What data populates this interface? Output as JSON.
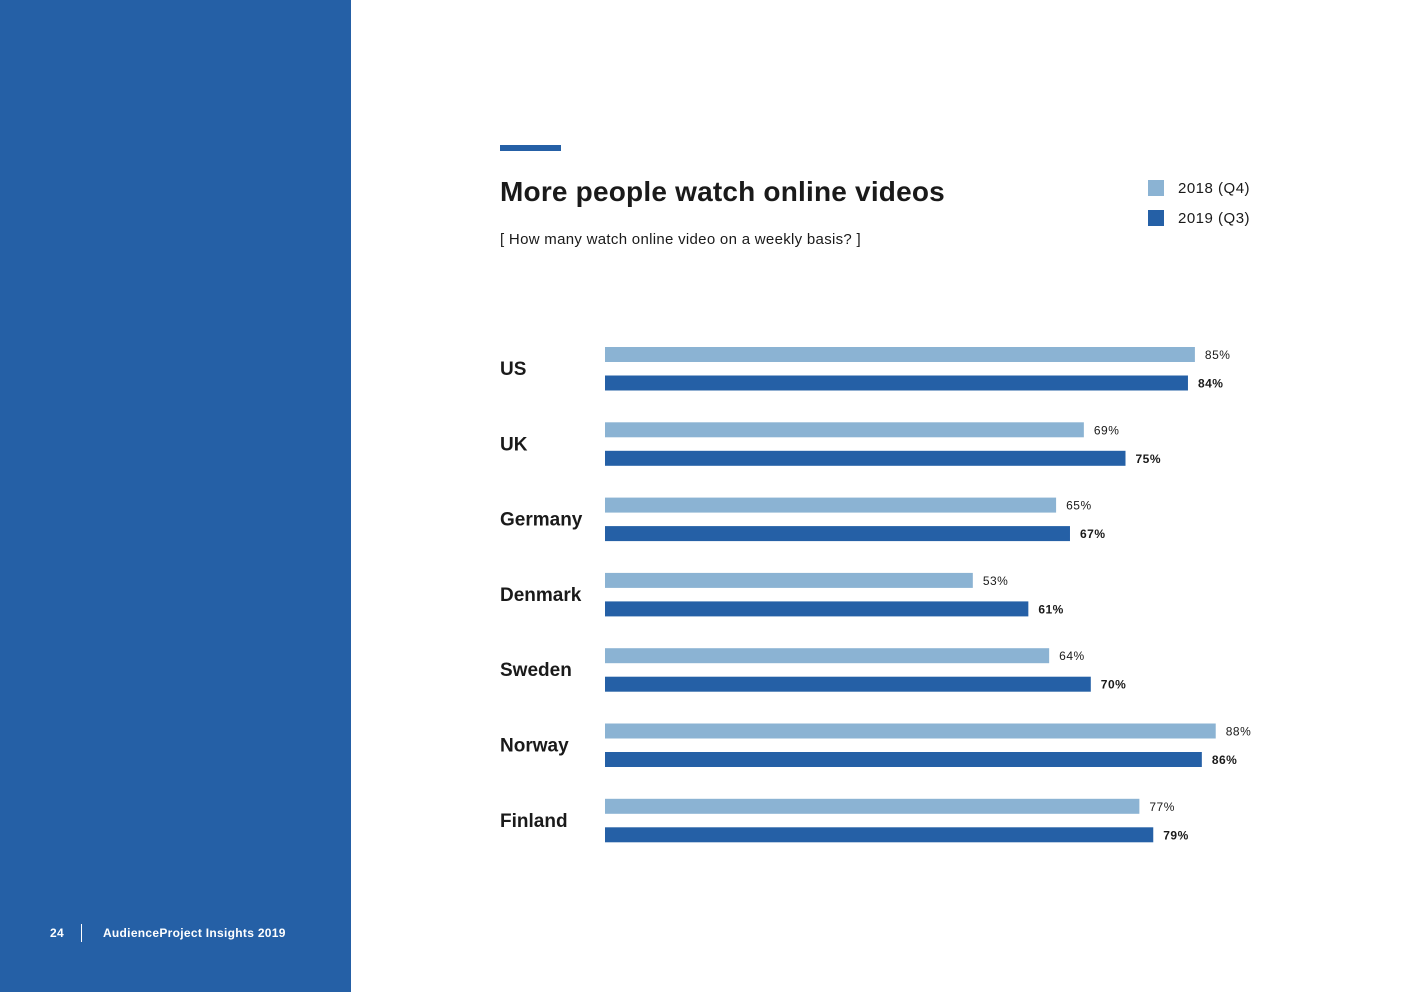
{
  "page": {
    "number": "24",
    "publication": "AudienceProject Insights 2019"
  },
  "colors": {
    "sidebar": "#2560a6",
    "series_2018": "#8bb3d3",
    "series_2019": "#2560a6"
  },
  "chart_data": {
    "type": "bar",
    "orientation": "horizontal",
    "title": "More people watch online videos",
    "subtitle": "[ How many watch online video on a weekly basis? ]",
    "categories": [
      "US",
      "UK",
      "Germany",
      "Denmark",
      "Sweden",
      "Norway",
      "Finland"
    ],
    "series": [
      {
        "name": "2018 (Q4)",
        "values": [
          85,
          69,
          65,
          53,
          64,
          88,
          77
        ],
        "labels": [
          "85%",
          "69%",
          "65%",
          "53%",
          "64%",
          "88%",
          "77%"
        ]
      },
      {
        "name": "2019 (Q3)",
        "values": [
          84,
          75,
          67,
          61,
          70,
          86,
          79
        ],
        "labels": [
          "84%",
          "75%",
          "67%",
          "61%",
          "70%",
          "86%",
          "79%"
        ]
      }
    ],
    "unit": "%",
    "xlim": [
      0,
      100
    ],
    "legend_position": "top-right",
    "grid": false
  }
}
